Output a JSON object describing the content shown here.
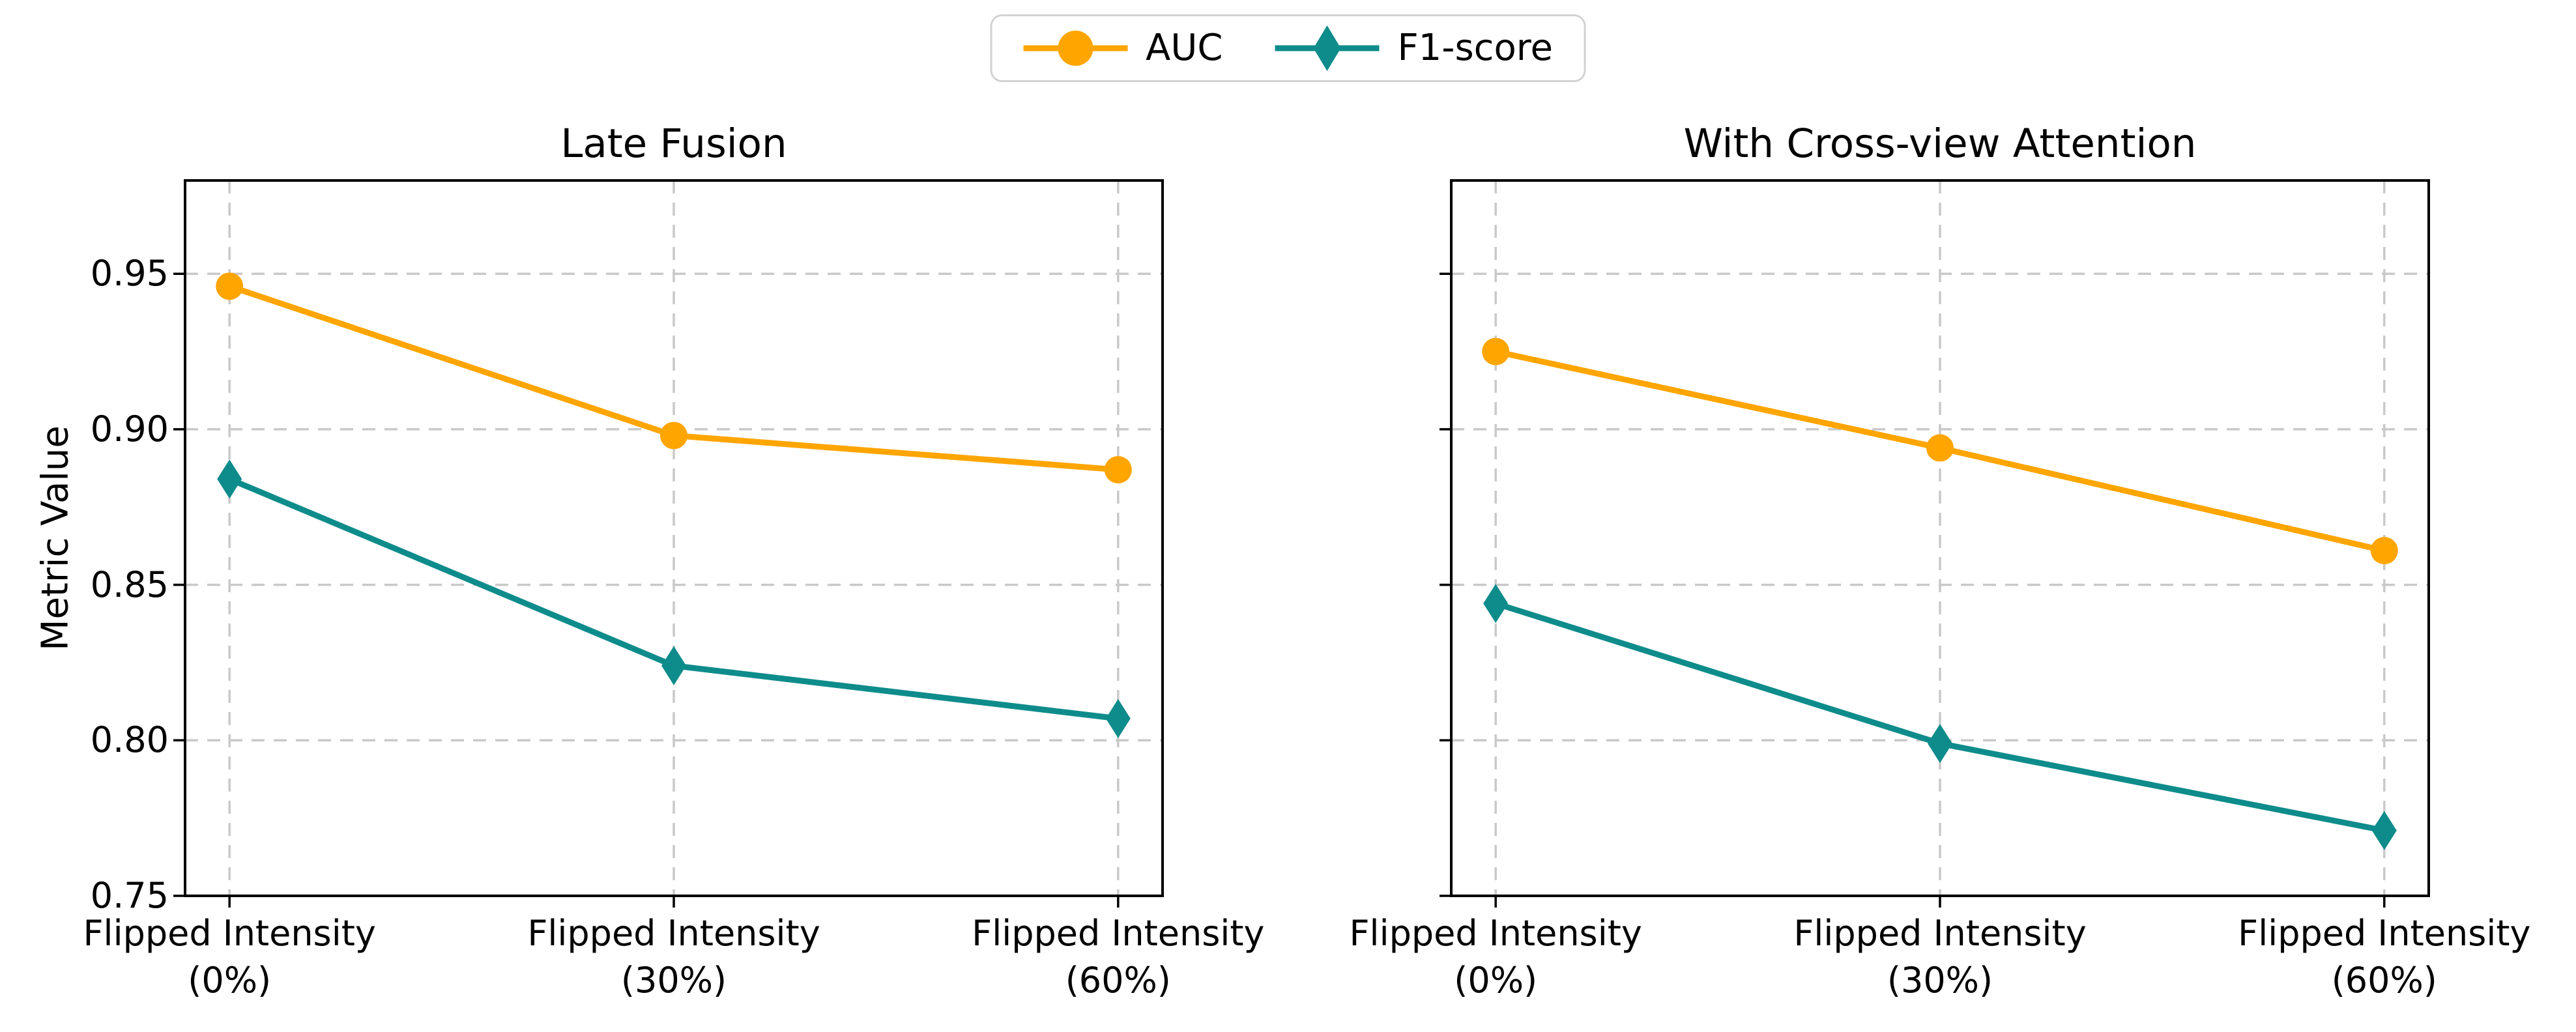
{
  "figure": {
    "ylabel": "Metric Value",
    "background": "#ffffff",
    "text_color": "#000000",
    "grid_color": "#c9c9c9",
    "spine_color": "#000000"
  },
  "legend": {
    "items": [
      {
        "label": "AUC",
        "color": "#FFA500",
        "marker": "circle"
      },
      {
        "label": "F1-score",
        "color": "#0E8C8B",
        "marker": "diamond"
      }
    ]
  },
  "chart_data": [
    {
      "type": "line",
      "title": "Late Fusion",
      "ylabel": "Metric Value",
      "grid": true,
      "legend_position": "top-center-outside",
      "ylim": [
        0.75,
        0.98
      ],
      "yticks": [
        {
          "value": 0.95,
          "label": "0.95"
        },
        {
          "value": 0.9,
          "label": "0.90"
        },
        {
          "value": 0.85,
          "label": "0.85"
        },
        {
          "value": 0.8,
          "label": "0.80"
        },
        {
          "value": 0.75,
          "label": "0.75"
        }
      ],
      "show_ytick_labels": true,
      "categories": [
        [
          "Flipped Intensity",
          "(0%)"
        ],
        [
          "Flipped Intensity",
          "(30%)"
        ],
        [
          "Flipped Intensity",
          "(60%)"
        ]
      ],
      "series": [
        {
          "name": "AUC",
          "color": "#FFA500",
          "marker": "circle",
          "values": [
            0.946,
            0.898,
            0.887
          ]
        },
        {
          "name": "F1-score",
          "color": "#0E8C8B",
          "marker": "diamond",
          "values": [
            0.884,
            0.824,
            0.807
          ]
        }
      ]
    },
    {
      "type": "line",
      "title": "With Cross-view Attention",
      "ylabel": "Metric Value",
      "grid": true,
      "legend_position": "top-center-outside",
      "ylim": [
        0.75,
        0.98
      ],
      "yticks": [
        {
          "value": 0.95,
          "label": "0.95"
        },
        {
          "value": 0.9,
          "label": "0.90"
        },
        {
          "value": 0.85,
          "label": "0.85"
        },
        {
          "value": 0.8,
          "label": "0.80"
        },
        {
          "value": 0.75,
          "label": "0.75"
        }
      ],
      "show_ytick_labels": false,
      "categories": [
        [
          "Flipped Intensity",
          "(0%)"
        ],
        [
          "Flipped Intensity",
          "(30%)"
        ],
        [
          "Flipped Intensity",
          "(60%)"
        ]
      ],
      "series": [
        {
          "name": "AUC",
          "color": "#FFA500",
          "marker": "circle",
          "values": [
            0.925,
            0.894,
            0.861
          ]
        },
        {
          "name": "F1-score",
          "color": "#0E8C8B",
          "marker": "diamond",
          "values": [
            0.844,
            0.799,
            0.771
          ]
        }
      ]
    }
  ]
}
